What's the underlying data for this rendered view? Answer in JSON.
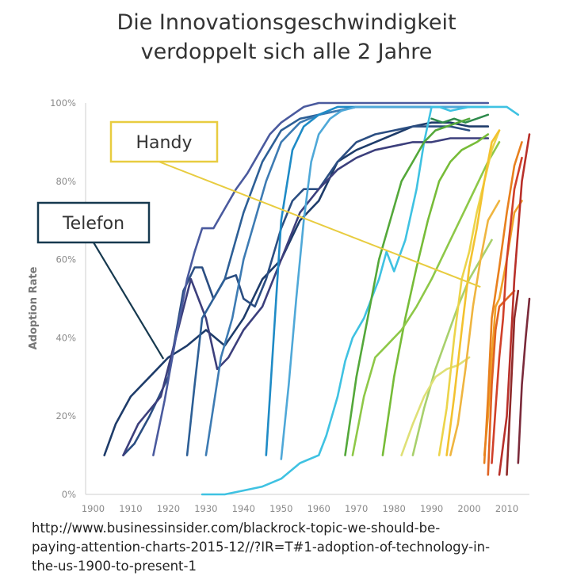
{
  "title_lines": [
    "Die Innovationsgeschwindigkeit",
    "verdoppelt sich alle 2 Jahre"
  ],
  "source_lines": [
    "http://www.businessinsider.com/blackrock-topic-we-should-be-",
    "paying-attention-charts-2015-12//?IR=T#1-adoption-of-technology-in-",
    "the-us-1900-to-present-1"
  ],
  "chart_data": {
    "type": "line",
    "title": "",
    "xlabel": "",
    "ylabel": "Adoption Rate",
    "xlim": [
      1898,
      2016
    ],
    "ylim": [
      0,
      100
    ],
    "x_ticks": [
      1900,
      1910,
      1920,
      1930,
      1940,
      1950,
      1960,
      1970,
      1980,
      1990,
      2000,
      2010
    ],
    "y_ticks": [
      0,
      20,
      40,
      60,
      80,
      100
    ],
    "y_tick_labels": [
      "0%",
      "20%",
      "40%",
      "60%",
      "80%",
      "100%"
    ],
    "grid": false,
    "annotations": [
      {
        "label": "Handy",
        "border_color": "#e8cc40",
        "pointer_to": [
          2003,
          53
        ]
      },
      {
        "label": "Telefon",
        "border_color": "#16394f",
        "pointer_to": [
          1917,
          33
        ]
      }
    ],
    "series": [
      {
        "color": "#1e3c6a",
        "points": [
          [
            1903,
            10
          ],
          [
            1906,
            18
          ],
          [
            1910,
            25
          ],
          [
            1915,
            30
          ],
          [
            1920,
            35
          ],
          [
            1925,
            38
          ],
          [
            1930,
            42
          ],
          [
            1935,
            38
          ],
          [
            1940,
            45
          ],
          [
            1945,
            55
          ],
          [
            1950,
            60
          ],
          [
            1955,
            70
          ],
          [
            1960,
            75
          ],
          [
            1965,
            85
          ],
          [
            1970,
            88
          ],
          [
            1975,
            90
          ],
          [
            1980,
            92
          ],
          [
            1985,
            94
          ],
          [
            1990,
            95
          ],
          [
            1995,
            95
          ],
          [
            2000,
            94
          ],
          [
            2005,
            94
          ]
        ]
      },
      {
        "color": "#2b4e82",
        "points": [
          [
            1908,
            10
          ],
          [
            1911,
            13
          ],
          [
            1915,
            20
          ],
          [
            1920,
            30
          ],
          [
            1924,
            52
          ],
          [
            1927,
            58
          ],
          [
            1929,
            58
          ],
          [
            1932,
            50
          ],
          [
            1935,
            55
          ],
          [
            1938,
            56
          ],
          [
            1940,
            50
          ],
          [
            1943,
            48
          ],
          [
            1946,
            55
          ],
          [
            1950,
            68
          ],
          [
            1953,
            75
          ],
          [
            1956,
            78
          ],
          [
            1960,
            78
          ],
          [
            1965,
            85
          ],
          [
            1970,
            90
          ],
          [
            1975,
            92
          ],
          [
            1980,
            93
          ],
          [
            1985,
            94
          ],
          [
            1990,
            94
          ],
          [
            1995,
            94
          ],
          [
            2000,
            93
          ]
        ]
      },
      {
        "color": "#3c3f7c",
        "points": [
          [
            1908,
            10
          ],
          [
            1912,
            18
          ],
          [
            1918,
            25
          ],
          [
            1922,
            40
          ],
          [
            1926,
            55
          ],
          [
            1930,
            45
          ],
          [
            1933,
            32
          ],
          [
            1936,
            35
          ],
          [
            1940,
            42
          ],
          [
            1945,
            48
          ],
          [
            1950,
            60
          ],
          [
            1955,
            72
          ],
          [
            1960,
            78
          ],
          [
            1965,
            83
          ],
          [
            1970,
            86
          ],
          [
            1975,
            88
          ],
          [
            1980,
            89
          ],
          [
            1985,
            90
          ],
          [
            1990,
            90
          ],
          [
            1995,
            91
          ],
          [
            2000,
            91
          ],
          [
            2005,
            91
          ]
        ]
      },
      {
        "color": "#4a5a9e",
        "points": [
          [
            1916,
            10
          ],
          [
            1919,
            24
          ],
          [
            1922,
            40
          ],
          [
            1925,
            55
          ],
          [
            1927,
            62
          ],
          [
            1929,
            68
          ],
          [
            1932,
            68
          ],
          [
            1935,
            73
          ],
          [
            1938,
            78
          ],
          [
            1941,
            82
          ],
          [
            1944,
            87
          ],
          [
            1947,
            92
          ],
          [
            1950,
            95
          ],
          [
            1953,
            97
          ],
          [
            1956,
            99
          ],
          [
            1960,
            100
          ],
          [
            1970,
            100
          ],
          [
            1980,
            100
          ],
          [
            1990,
            100
          ],
          [
            2000,
            100
          ],
          [
            2005,
            100
          ]
        ]
      },
      {
        "color": "#2d5f96",
        "points": [
          [
            1925,
            10
          ],
          [
            1927,
            28
          ],
          [
            1929,
            45
          ],
          [
            1932,
            50
          ],
          [
            1935,
            55
          ],
          [
            1940,
            72
          ],
          [
            1945,
            85
          ],
          [
            1950,
            93
          ],
          [
            1955,
            96
          ],
          [
            1960,
            97
          ],
          [
            1965,
            98
          ],
          [
            1970,
            99
          ],
          [
            1980,
            99
          ],
          [
            1990,
            99
          ],
          [
            2000,
            99
          ]
        ]
      },
      {
        "color": "#3d7bb3",
        "points": [
          [
            1930,
            10
          ],
          [
            1934,
            35
          ],
          [
            1937,
            45
          ],
          [
            1940,
            60
          ],
          [
            1943,
            70
          ],
          [
            1946,
            80
          ],
          [
            1950,
            90
          ],
          [
            1955,
            95
          ],
          [
            1960,
            97
          ],
          [
            1965,
            98
          ],
          [
            1970,
            99
          ],
          [
            2000,
            99
          ]
        ]
      },
      {
        "color": "#1f8bc6",
        "points": [
          [
            1946,
            10
          ],
          [
            1948,
            40
          ],
          [
            1950,
            70
          ],
          [
            1953,
            88
          ],
          [
            1956,
            94
          ],
          [
            1960,
            97
          ],
          [
            1965,
            99
          ],
          [
            1970,
            99
          ],
          [
            1980,
            99
          ],
          [
            1990,
            99
          ],
          [
            2000,
            99
          ],
          [
            2005,
            99
          ]
        ]
      },
      {
        "color": "#4fa8d8",
        "points": [
          [
            1950,
            9
          ],
          [
            1952,
            28
          ],
          [
            1954,
            50
          ],
          [
            1956,
            70
          ],
          [
            1958,
            85
          ],
          [
            1960,
            92
          ],
          [
            1963,
            96
          ],
          [
            1966,
            98
          ],
          [
            1970,
            99
          ],
          [
            1980,
            99
          ],
          [
            1990,
            99
          ],
          [
            2000,
            99
          ]
        ]
      },
      {
        "color": "#3fc2e2",
        "points": [
          [
            1929,
            0
          ],
          [
            1935,
            0
          ],
          [
            1940,
            1
          ],
          [
            1945,
            2
          ],
          [
            1950,
            4
          ],
          [
            1955,
            8
          ],
          [
            1960,
            10
          ],
          [
            1962,
            15
          ],
          [
            1965,
            25
          ],
          [
            1967,
            34
          ],
          [
            1969,
            40
          ],
          [
            1972,
            45
          ],
          [
            1976,
            55
          ],
          [
            1978,
            62
          ],
          [
            1980,
            57
          ],
          [
            1983,
            65
          ],
          [
            1986,
            78
          ],
          [
            1988,
            90
          ],
          [
            1990,
            99
          ],
          [
            1992,
            99
          ],
          [
            1995,
            98
          ],
          [
            2000,
            99
          ],
          [
            2005,
            99
          ],
          [
            2010,
            99
          ],
          [
            2013,
            97
          ]
        ]
      },
      {
        "color": "#2e8a4c",
        "points": [
          [
            1990,
            96
          ],
          [
            1993,
            95
          ],
          [
            1996,
            96
          ],
          [
            1999,
            95
          ],
          [
            2002,
            96
          ],
          [
            2005,
            97
          ]
        ]
      },
      {
        "color": "#54a83a",
        "points": [
          [
            1967,
            10
          ],
          [
            1970,
            30
          ],
          [
            1973,
            45
          ],
          [
            1976,
            60
          ],
          [
            1979,
            70
          ],
          [
            1982,
            80
          ],
          [
            1985,
            85
          ],
          [
            1988,
            90
          ],
          [
            1991,
            93
          ],
          [
            1994,
            94
          ],
          [
            1997,
            95
          ],
          [
            2000,
            96
          ]
        ]
      },
      {
        "color": "#77bc38",
        "points": [
          [
            1977,
            10
          ],
          [
            1980,
            30
          ],
          [
            1983,
            45
          ],
          [
            1986,
            58
          ],
          [
            1989,
            70
          ],
          [
            1992,
            80
          ],
          [
            1995,
            85
          ],
          [
            1998,
            88
          ],
          [
            2002,
            90
          ],
          [
            2005,
            92
          ]
        ]
      },
      {
        "color": "#8ec848",
        "points": [
          [
            1969,
            10
          ],
          [
            1972,
            25
          ],
          [
            1975,
            35
          ],
          [
            1978,
            38
          ],
          [
            1982,
            42
          ],
          [
            1986,
            48
          ],
          [
            1990,
            55
          ],
          [
            1995,
            65
          ],
          [
            2000,
            75
          ],
          [
            2005,
            85
          ],
          [
            2008,
            90
          ]
        ]
      },
      {
        "color": "#a8d06c",
        "points": [
          [
            1985,
            10
          ],
          [
            1988,
            22
          ],
          [
            1991,
            32
          ],
          [
            1994,
            40
          ],
          [
            1997,
            48
          ],
          [
            2000,
            55
          ],
          [
            2003,
            60
          ],
          [
            2006,
            65
          ]
        ]
      },
      {
        "color": "#dfe076",
        "points": [
          [
            1982,
            10
          ],
          [
            1985,
            18
          ],
          [
            1988,
            25
          ],
          [
            1991,
            30
          ],
          [
            1994,
            32
          ],
          [
            1997,
            33
          ],
          [
            2000,
            35
          ]
        ]
      },
      {
        "color": "#ecd44a",
        "points": [
          [
            1992,
            10
          ],
          [
            1994,
            22
          ],
          [
            1996,
            40
          ],
          [
            1998,
            55
          ],
          [
            2000,
            62
          ],
          [
            2002,
            72
          ],
          [
            2004,
            80
          ],
          [
            2006,
            88
          ],
          [
            2008,
            93
          ]
        ]
      },
      {
        "color": "#f3c22f",
        "points": [
          [
            1994,
            10
          ],
          [
            1996,
            25
          ],
          [
            1998,
            42
          ],
          [
            2000,
            58
          ],
          [
            2002,
            68
          ],
          [
            2004,
            80
          ],
          [
            2006,
            90
          ],
          [
            2008,
            93
          ]
        ]
      },
      {
        "color": "#efb540",
        "points": [
          [
            1995,
            10
          ],
          [
            1997,
            18
          ],
          [
            1999,
            32
          ],
          [
            2001,
            48
          ],
          [
            2003,
            60
          ],
          [
            2005,
            70
          ],
          [
            2008,
            75
          ]
        ]
      },
      {
        "color": "#f0a028",
        "points": [
          [
            2004,
            10
          ],
          [
            2005,
            20
          ],
          [
            2006,
            35
          ],
          [
            2007,
            48
          ],
          [
            2008,
            50
          ],
          [
            2010,
            60
          ],
          [
            2012,
            72
          ],
          [
            2014,
            75
          ]
        ]
      },
      {
        "color": "#e8801e",
        "points": [
          [
            2004,
            8
          ],
          [
            2005,
            25
          ],
          [
            2006,
            45
          ],
          [
            2008,
            58
          ],
          [
            2010,
            72
          ],
          [
            2012,
            84
          ],
          [
            2014,
            90
          ]
        ]
      },
      {
        "color": "#e06322",
        "points": [
          [
            2005,
            5
          ],
          [
            2006,
            28
          ],
          [
            2007,
            42
          ],
          [
            2008,
            48
          ],
          [
            2010,
            50
          ],
          [
            2012,
            52
          ]
        ]
      },
      {
        "color": "#d0402a",
        "points": [
          [
            2006,
            8
          ],
          [
            2007,
            22
          ],
          [
            2008,
            35
          ],
          [
            2009,
            45
          ],
          [
            2010,
            60
          ],
          [
            2012,
            78
          ],
          [
            2014,
            86
          ]
        ]
      },
      {
        "color": "#b8302a",
        "points": [
          [
            2008,
            5
          ],
          [
            2010,
            20
          ],
          [
            2012,
            55
          ],
          [
            2014,
            80
          ],
          [
            2016,
            92
          ]
        ]
      },
      {
        "color": "#8e2a2a",
        "points": [
          [
            2010,
            5
          ],
          [
            2011,
            25
          ],
          [
            2012,
            45
          ],
          [
            2013,
            52
          ]
        ]
      },
      {
        "color": "#7a2a3a",
        "points": [
          [
            2013,
            8
          ],
          [
            2014,
            28
          ],
          [
            2015,
            40
          ],
          [
            2016,
            50
          ]
        ]
      }
    ]
  }
}
